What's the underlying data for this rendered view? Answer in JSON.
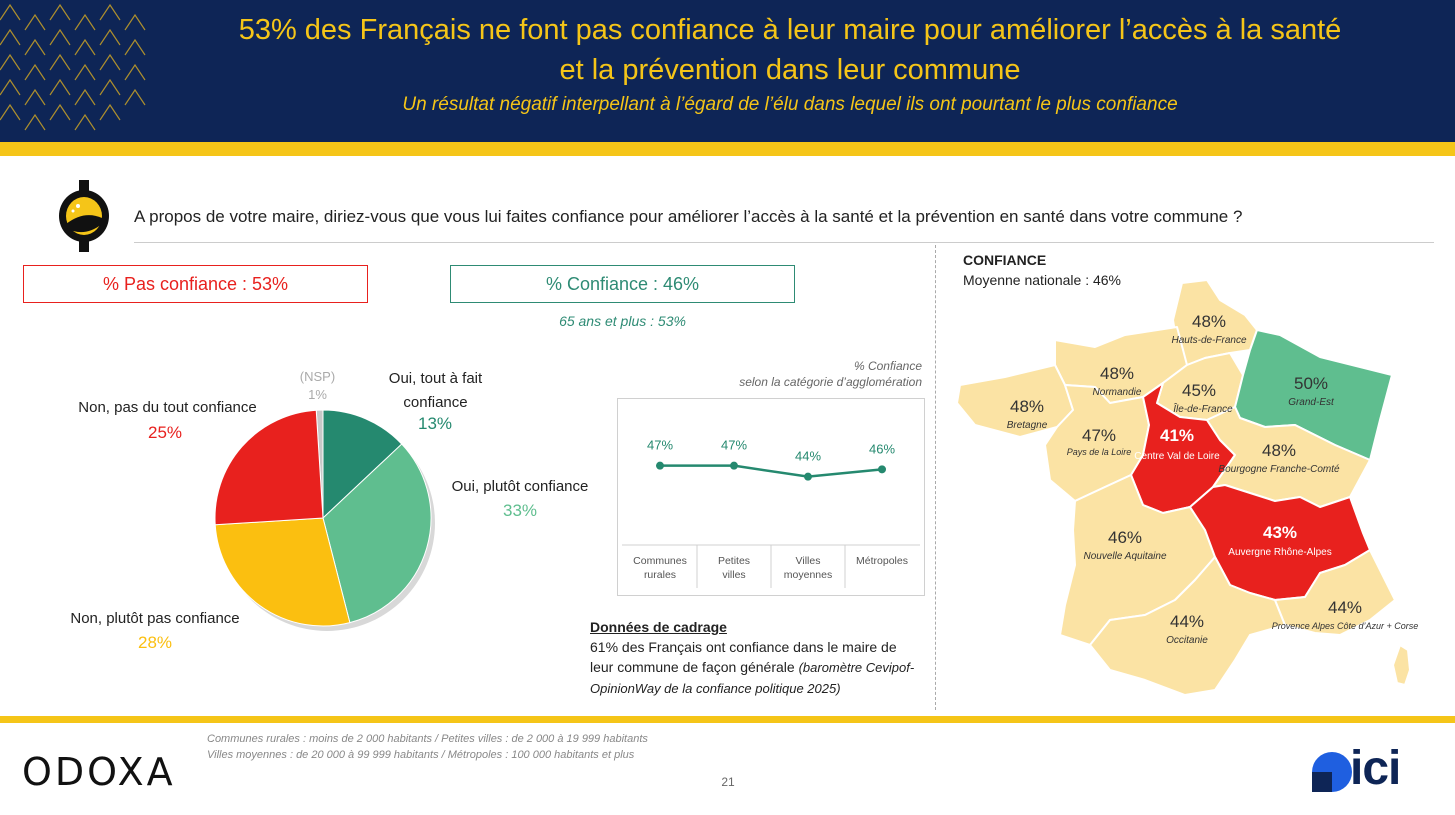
{
  "header": {
    "title_line1": "53% des Français ne font pas confiance à leur maire pour améliorer l’accès à la santé",
    "title_line2": "et la prévention dans leur commune",
    "subtitle": "Un résultat négatif interpellant à l’égard de l’élu dans lequel ils ont pourtant le plus confiance"
  },
  "question": "A propos de votre maire, diriez-vous que vous lui faites confiance pour améliorer l’accès à la santé et la prévention en santé dans votre commune ?",
  "summary": {
    "pas_confiance": "% Pas confiance : 53%",
    "confiance": "% Confiance : 46%",
    "age_note": "65 ans et plus : 53%"
  },
  "line_caption": {
    "line1": "% Confiance",
    "line2": "selon la catégorie d’agglomération"
  },
  "cadrage": {
    "title": "Données de cadrage",
    "text": "61% des Français ont confiance dans le maire de leur commune de façon générale",
    "source": "(baromètre Cevipof-OpinionWay de la confiance politique 2025)"
  },
  "map": {
    "title": "CONFIANCE",
    "avg": "Moyenne nationale : 46%",
    "regions": [
      {
        "name": "Hauts-de-France",
        "value": "48%",
        "color": "#fbe3a4"
      },
      {
        "name": "Normandie",
        "value": "48%",
        "color": "#fbe3a4"
      },
      {
        "name": "Île-de-France",
        "value": "45%",
        "color": "#fbe3a4"
      },
      {
        "name": "Grand-Est",
        "value": "50%",
        "color": "#5fbe8f"
      },
      {
        "name": "Bretagne",
        "value": "48%",
        "color": "#fbe3a4"
      },
      {
        "name": "Pays de la Loire",
        "value": "47%",
        "color": "#fbe3a4"
      },
      {
        "name": "Centre Val de Loire",
        "value": "41%",
        "color": "#e8211e"
      },
      {
        "name": "Bourgogne Franche-Comté",
        "value": "48%",
        "color": "#fbe3a4"
      },
      {
        "name": "Nouvelle Aquitaine",
        "value": "46%",
        "color": "#fbe3a4"
      },
      {
        "name": "Auvergne Rhône-Alpes",
        "value": "43%",
        "color": "#e8211e"
      },
      {
        "name": "Occitanie",
        "value": "44%",
        "color": "#fbe3a4"
      },
      {
        "name": "Provence Alpes Côte d’Azur + Corse",
        "value": "44%",
        "color": "#fbe3a4"
      }
    ]
  },
  "footnote": {
    "line1": "Communes rurales : moins de 2 000 habitants / Petites villes : de 2 000 à 19 999 habitants",
    "line2": "Villes moyennes : de 20 000 à 99 999 habitants / Métropoles : 100 000 habitants et plus"
  },
  "page_number": "21",
  "logos": {
    "odoxa": "ODOXA",
    "ici": "ici"
  },
  "colors": {
    "navy": "#0e2556",
    "yellow": "#f5c518",
    "red": "#e8211e",
    "dark_green": "#25896f",
    "light_green": "#5fbe8f",
    "amber": "#fbbf10",
    "grey": "#c8c8c8"
  },
  "chart_data": [
    {
      "type": "pie",
      "labels": [
        "Oui, tout à fait confiance",
        "Oui, plutôt confiance",
        "Non, plutôt pas confiance",
        "Non, pas du tout confiance",
        "(NSP)"
      ],
      "values": [
        13,
        33,
        28,
        25,
        1
      ],
      "value_labels": [
        "13%",
        "33%",
        "28%",
        "25%",
        "1%"
      ],
      "colors": [
        "#25896f",
        "#5fbe8f",
        "#fbbf10",
        "#e8211e",
        "#c8c8c8"
      ]
    },
    {
      "type": "line",
      "title": "% Confiance selon la catégorie d’agglomération",
      "categories": [
        "Communes rurales",
        "Petites villes",
        "Villes moyennes",
        "Métropoles"
      ],
      "values": [
        47,
        47,
        44,
        46
      ],
      "value_labels": [
        "47%",
        "47%",
        "44%",
        "46%"
      ],
      "ylim": [
        30,
        60
      ],
      "color": "#25896f"
    }
  ]
}
